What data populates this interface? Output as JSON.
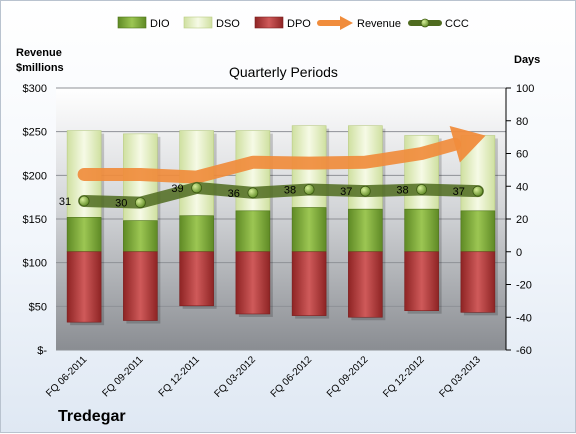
{
  "chart_data": {
    "type": "bar",
    "title": "Quarterly Periods",
    "company": "Tredegar",
    "left_axis_title": [
      "Revenue",
      "$millions"
    ],
    "right_axis_title": "Days",
    "categories": [
      "FQ 06-2011",
      "FQ 09-2011",
      "FQ 12-2011",
      "FQ 03-2012",
      "FQ 06-2012",
      "FQ 09-2012",
      "FQ 12-2012",
      "FQ 03-2013"
    ],
    "left_ticks": [
      "$300",
      "$250",
      "$200",
      "$150",
      "$100",
      "$50",
      "$-"
    ],
    "left_ylim": [
      0,
      300
    ],
    "right_ticks": [
      "100",
      "80",
      "60",
      "40",
      "20",
      "0",
      "-20",
      "-40",
      "-60"
    ],
    "right_ylim": [
      -60,
      100
    ],
    "grid": true,
    "legend_position": "top",
    "series": [
      {
        "name": "DIO",
        "type": "stacked-bar",
        "axis": "right",
        "values": [
          21,
          19,
          22,
          25,
          27,
          26,
          26,
          25
        ],
        "color": "#7ea63a"
      },
      {
        "name": "DSO",
        "type": "stacked-bar",
        "axis": "right",
        "values": [
          53,
          53,
          52,
          49,
          50,
          51,
          45,
          46
        ],
        "color": "#e8f0c8"
      },
      {
        "name": "DPO",
        "type": "stacked-bar",
        "axis": "right",
        "values": [
          -43,
          -42,
          -33,
          -38,
          -39,
          -40,
          -36,
          -37
        ],
        "color": "#b23a3a"
      },
      {
        "name": "Revenue",
        "type": "arrow-line",
        "axis": "left",
        "values": [
          201,
          201,
          198,
          215,
          214,
          215,
          225,
          243
        ],
        "color": "#f08c3c"
      },
      {
        "name": "CCC",
        "type": "line",
        "axis": "right",
        "values": [
          31,
          30,
          39,
          36,
          38,
          37,
          38,
          37
        ],
        "labels": [
          "31",
          "30",
          "39",
          "36",
          "38",
          "37",
          "38",
          "37"
        ],
        "color": "#4f6b1f"
      }
    ]
  }
}
